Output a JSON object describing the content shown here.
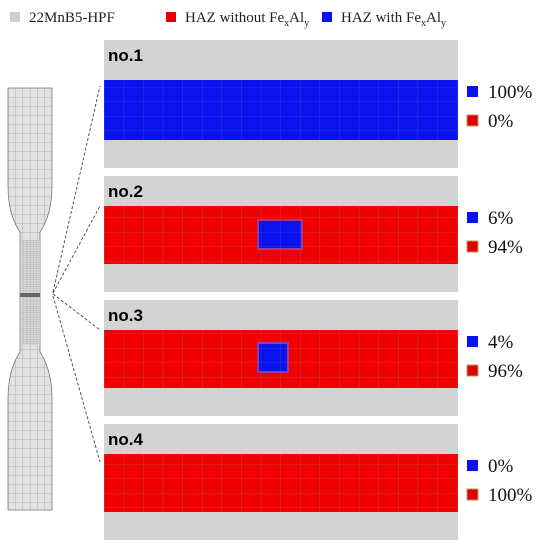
{
  "legend": [
    {
      "parts": [
        "22MnB5-HPF"
      ]
    },
    {
      "parts": [
        "HAZ without Fe",
        "x",
        "Al",
        "y"
      ]
    },
    {
      "parts": [
        "HAZ with Fe",
        "x",
        "Al",
        "y"
      ]
    }
  ],
  "panels": [
    {
      "label": "no.1",
      "items": [
        "100%",
        "0%"
      ]
    },
    {
      "label": "no.2",
      "items": [
        "6%",
        "94%"
      ]
    },
    {
      "label": "no.3",
      "items": [
        "4%",
        "96%"
      ]
    },
    {
      "label": "no.4",
      "items": [
        "0%",
        "100%"
      ]
    }
  ]
}
